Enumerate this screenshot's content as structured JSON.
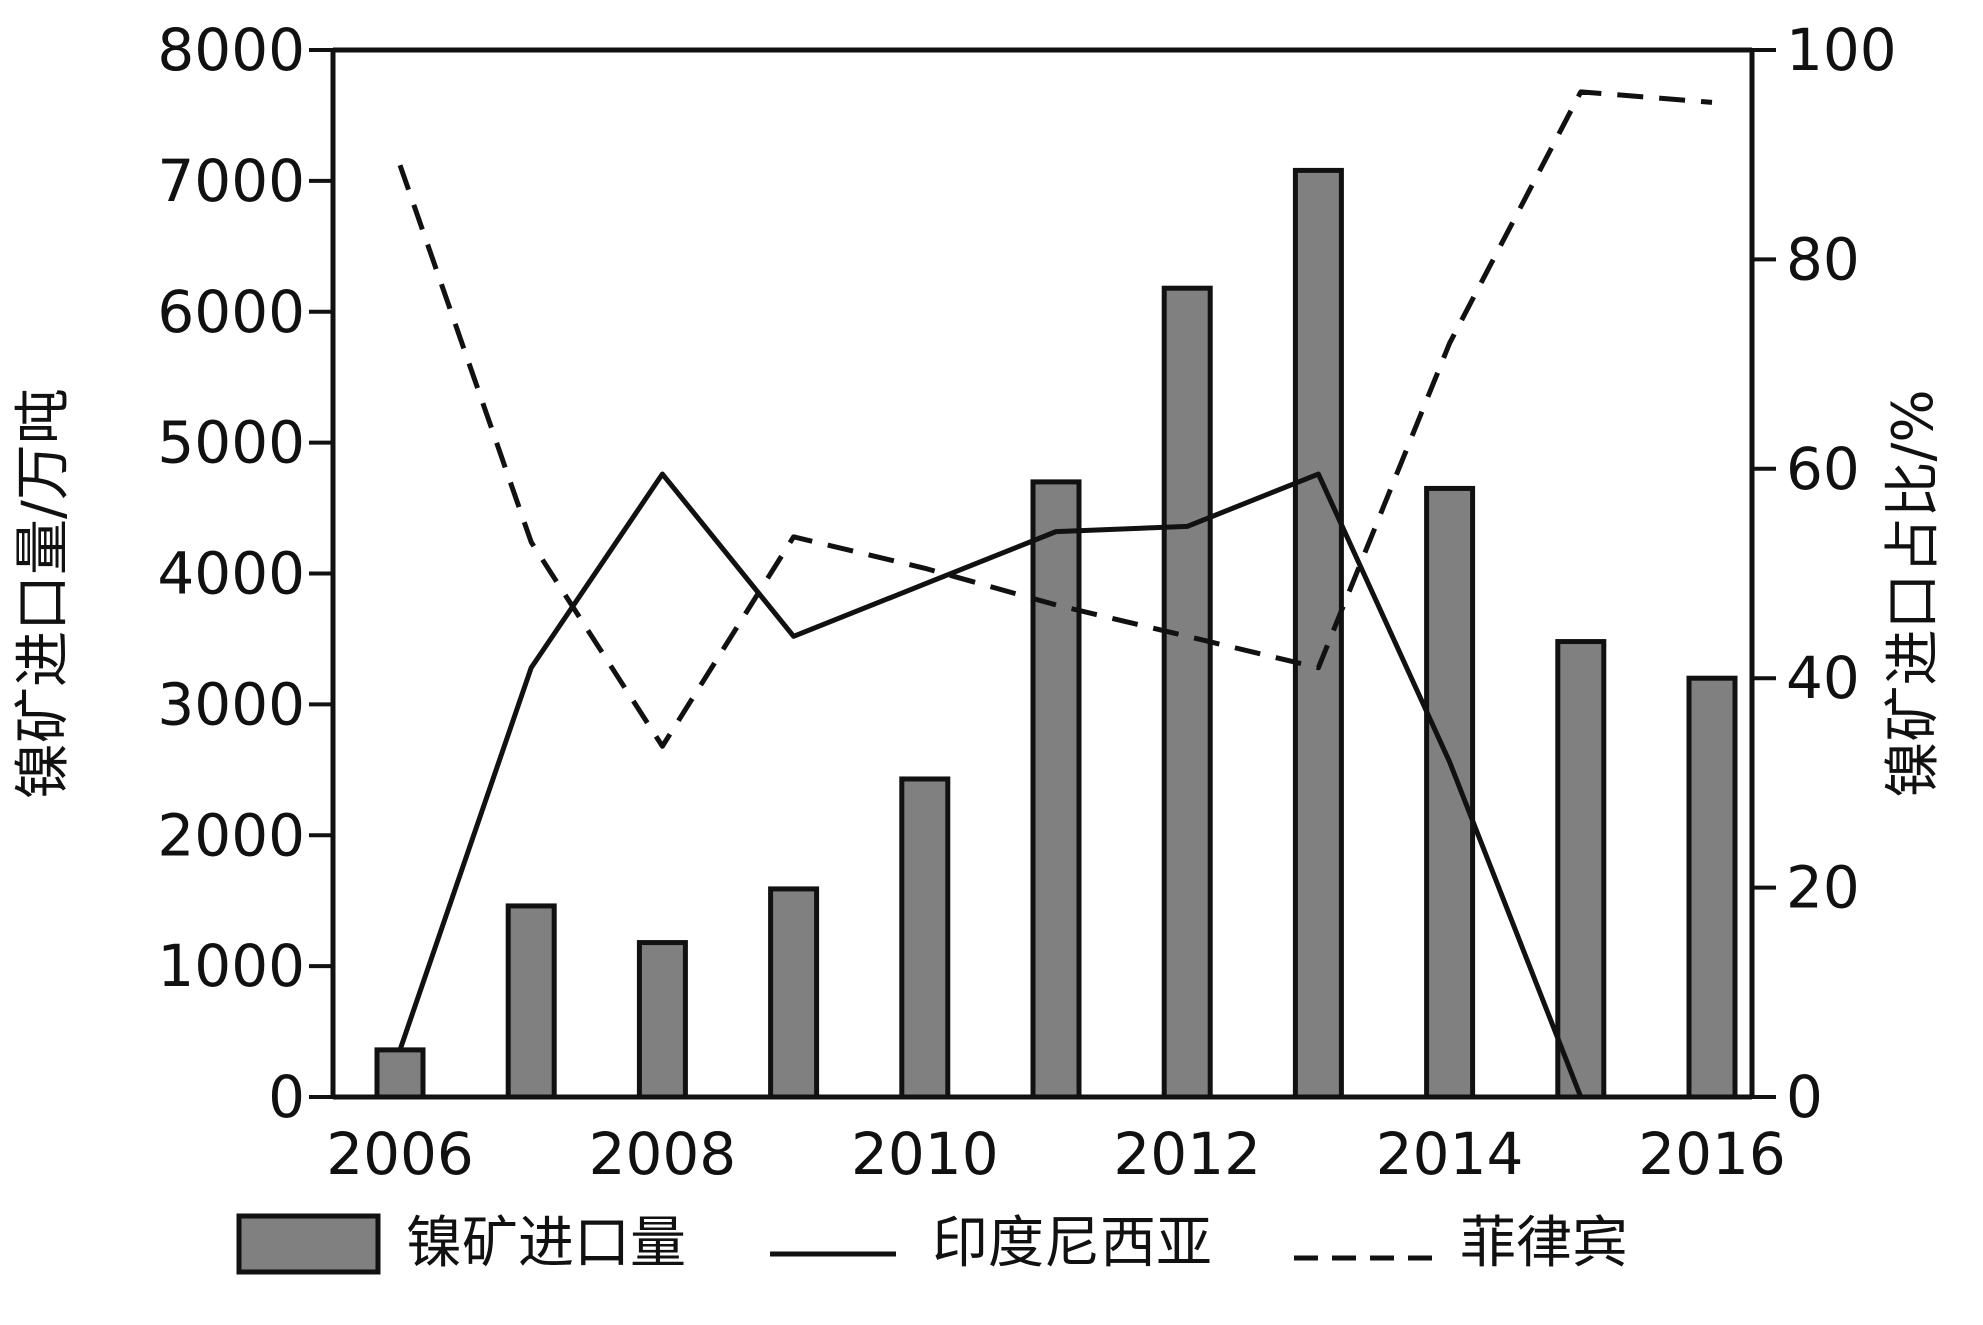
{
  "chart_data": {
    "type": "bar",
    "x": [
      2006,
      2007,
      2008,
      2009,
      2010,
      2011,
      2012,
      2013,
      2014,
      2015,
      2016
    ],
    "x_tick_labels": [
      "2006",
      "2008",
      "2010",
      "2012",
      "2014",
      "2016"
    ],
    "x_tick_values": [
      2006,
      2008,
      2010,
      2012,
      2014,
      2016
    ],
    "ylabel": "镍矿进口量/万吨",
    "ylim": [
      0,
      8000
    ],
    "y_ticks": [
      "0",
      "1000",
      "2000",
      "3000",
      "4000",
      "5000",
      "6000",
      "7000",
      "8000"
    ],
    "y2label": "镍矿进口占比/%",
    "y2lim": [
      0,
      100
    ],
    "y2_ticks": [
      "0",
      "20",
      "40",
      "60",
      "80",
      "100"
    ],
    "grid": false,
    "legend_position": "bottom",
    "series": [
      {
        "name": "镍矿进口量",
        "type": "bar",
        "axis": "left",
        "color": "#808080",
        "values": [
          360,
          1460,
          1180,
          1590,
          2430,
          4700,
          6180,
          7080,
          4650,
          3480,
          3200
        ]
      },
      {
        "name": "印度尼西亚",
        "type": "line",
        "axis": "right",
        "style": "solid",
        "color": "#111111",
        "values": [
          4.5,
          41,
          59.5,
          44,
          49,
          54,
          54.5,
          59.5,
          32,
          0,
          null
        ]
      },
      {
        "name": "菲律宾",
        "type": "line",
        "axis": "right",
        "style": "dashed",
        "color": "#111111",
        "values": [
          89,
          53,
          33.5,
          53.5,
          50.5,
          47,
          44,
          41,
          72,
          96,
          95
        ]
      }
    ]
  }
}
